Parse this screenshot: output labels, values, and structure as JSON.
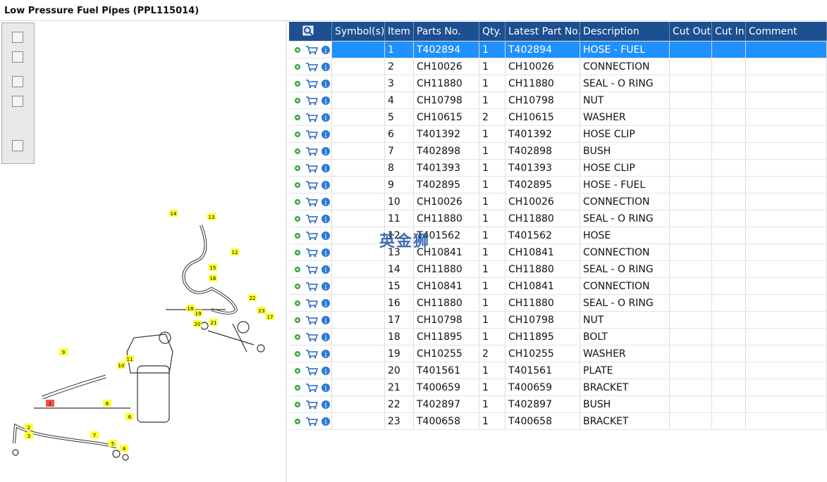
{
  "header": {
    "title": "Low Pressure Fuel Pipes (PPL115014)"
  },
  "diagram": {
    "callouts": [
      "1",
      "2",
      "3",
      "4",
      "5",
      "6",
      "7",
      "8",
      "9",
      "10",
      "11",
      "12",
      "13",
      "14",
      "15",
      "16",
      "17",
      "18",
      "19",
      "20",
      "21",
      "22",
      "23"
    ]
  },
  "watermark": "英金狮",
  "table": {
    "columns": [
      "Symbol(s)",
      "Item",
      "Parts No.",
      "Qty.",
      "Latest Part No.",
      "Description",
      "Cut Out",
      "Cut In",
      "Comment"
    ],
    "rows": [
      [
        1,
        "T402894",
        1,
        "T402894",
        "HOSE - FUEL"
      ],
      [
        2,
        "CH10026",
        1,
        "CH10026",
        "CONNECTION"
      ],
      [
        3,
        "CH11880",
        1,
        "CH11880",
        "SEAL - O RING"
      ],
      [
        4,
        "CH10798",
        1,
        "CH10798",
        "NUT"
      ],
      [
        5,
        "CH10615",
        2,
        "CH10615",
        "WASHER"
      ],
      [
        6,
        "T401392",
        1,
        "T401392",
        "HOSE CLIP"
      ],
      [
        7,
        "T402898",
        1,
        "T402898",
        "BUSH"
      ],
      [
        8,
        "T401393",
        1,
        "T401393",
        "HOSE CLIP"
      ],
      [
        9,
        "T402895",
        1,
        "T402895",
        "HOSE - FUEL"
      ],
      [
        10,
        "CH10026",
        1,
        "CH10026",
        "CONNECTION"
      ],
      [
        11,
        "CH11880",
        1,
        "CH11880",
        "SEAL - O RING"
      ],
      [
        12,
        "T401562",
        1,
        "T401562",
        "HOSE"
      ],
      [
        13,
        "CH10841",
        1,
        "CH10841",
        "CONNECTION"
      ],
      [
        14,
        "CH11880",
        1,
        "CH11880",
        "SEAL - O RING"
      ],
      [
        15,
        "CH10841",
        1,
        "CH10841",
        "CONNECTION"
      ],
      [
        16,
        "CH11880",
        1,
        "CH11880",
        "SEAL - O RING"
      ],
      [
        17,
        "CH10798",
        1,
        "CH10798",
        "NUT"
      ],
      [
        18,
        "CH11895",
        1,
        "CH11895",
        "BOLT"
      ],
      [
        19,
        "CH10255",
        2,
        "CH10255",
        "WASHER"
      ],
      [
        20,
        "T401561",
        1,
        "T401561",
        "PLATE"
      ],
      [
        21,
        "T400659",
        1,
        "T400659",
        "BRACKET"
      ],
      [
        22,
        "T402897",
        1,
        "T402897",
        "BUSH"
      ],
      [
        23,
        "T400658",
        1,
        "T400658",
        "BRACKET"
      ]
    ]
  }
}
